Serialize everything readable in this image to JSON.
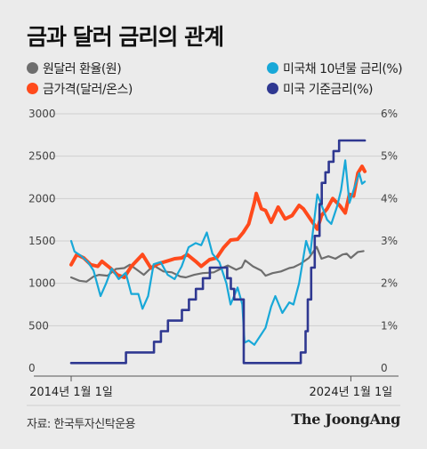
{
  "title": "금과 달러 금리의 관계",
  "legend": [
    {
      "label": "원달러 환율(원)",
      "color": "#6e6e6e"
    },
    {
      "label": "금가격(달러/온스)",
      "color": "#ff4a1c"
    },
    {
      "label": "미국채 10년물 금리(%)",
      "color": "#18a8d8"
    },
    {
      "label": "미국 기준금리(%)",
      "color": "#2f3891"
    }
  ],
  "source": "자료: 한국투자신탁운용",
  "brand": "The JoongAng",
  "chart_data": {
    "type": "line",
    "x_start_label": "2014년 1월 1일",
    "x_end_label": "2024년 1월 1일",
    "x_range": [
      "2014-01-01",
      "2024-06-30"
    ],
    "y_left": {
      "range": [
        0,
        3000
      ],
      "ticks": [
        "3000",
        "2500",
        "2000",
        "1500",
        "1000",
        "500",
        "0"
      ]
    },
    "y_right": {
      "range": [
        0,
        6
      ],
      "ticks": [
        "6%",
        "5%",
        "4%",
        "3%",
        "2%",
        "1%",
        "0"
      ]
    },
    "series": [
      {
        "name": "원달러 환율(원)",
        "axis": "left",
        "color": "#6e6e6e",
        "width": 2.2,
        "points": [
          [
            2014.0,
            1070
          ],
          [
            2014.3,
            1030
          ],
          [
            2014.55,
            1020
          ],
          [
            2014.8,
            1080
          ],
          [
            2015.0,
            1100
          ],
          [
            2015.3,
            1090
          ],
          [
            2015.6,
            1170
          ],
          [
            2015.9,
            1180
          ],
          [
            2016.1,
            1220
          ],
          [
            2016.35,
            1160
          ],
          [
            2016.6,
            1100
          ],
          [
            2016.85,
            1180
          ],
          [
            2017.0,
            1200
          ],
          [
            2017.3,
            1140
          ],
          [
            2017.6,
            1130
          ],
          [
            2017.9,
            1080
          ],
          [
            2018.1,
            1070
          ],
          [
            2018.4,
            1100
          ],
          [
            2018.7,
            1120
          ],
          [
            2018.9,
            1125
          ],
          [
            2019.1,
            1130
          ],
          [
            2019.4,
            1180
          ],
          [
            2019.6,
            1210
          ],
          [
            2019.9,
            1160
          ],
          [
            2020.1,
            1190
          ],
          [
            2020.22,
            1270
          ],
          [
            2020.5,
            1200
          ],
          [
            2020.8,
            1150
          ],
          [
            2020.95,
            1090
          ],
          [
            2021.2,
            1120
          ],
          [
            2021.5,
            1140
          ],
          [
            2021.8,
            1180
          ],
          [
            2021.95,
            1190
          ],
          [
            2022.2,
            1230
          ],
          [
            2022.5,
            1300
          ],
          [
            2022.78,
            1430
          ],
          [
            2022.95,
            1290
          ],
          [
            2023.2,
            1320
          ],
          [
            2023.45,
            1290
          ],
          [
            2023.7,
            1340
          ],
          [
            2023.85,
            1350
          ],
          [
            2024.0,
            1300
          ],
          [
            2024.25,
            1370
          ],
          [
            2024.45,
            1380
          ]
        ]
      },
      {
        "name": "금가격(달러/온스)",
        "axis": "left",
        "color": "#ff4a1c",
        "width": 4,
        "points": [
          [
            2014.0,
            1220
          ],
          [
            2014.2,
            1340
          ],
          [
            2014.45,
            1300
          ],
          [
            2014.7,
            1220
          ],
          [
            2014.95,
            1200
          ],
          [
            2015.1,
            1260
          ],
          [
            2015.4,
            1180
          ],
          [
            2015.65,
            1100
          ],
          [
            2015.9,
            1070
          ],
          [
            2016.15,
            1200
          ],
          [
            2016.55,
            1340
          ],
          [
            2016.85,
            1180
          ],
          [
            2017.1,
            1230
          ],
          [
            2017.4,
            1260
          ],
          [
            2017.7,
            1290
          ],
          [
            2017.95,
            1300
          ],
          [
            2018.15,
            1340
          ],
          [
            2018.45,
            1260
          ],
          [
            2018.65,
            1200
          ],
          [
            2018.95,
            1280
          ],
          [
            2019.2,
            1300
          ],
          [
            2019.45,
            1420
          ],
          [
            2019.7,
            1510
          ],
          [
            2019.95,
            1520
          ],
          [
            2020.15,
            1600
          ],
          [
            2020.35,
            1700
          ],
          [
            2020.55,
            1950
          ],
          [
            2020.62,
            2060
          ],
          [
            2020.8,
            1880
          ],
          [
            2020.95,
            1860
          ],
          [
            2021.15,
            1720
          ],
          [
            2021.4,
            1900
          ],
          [
            2021.65,
            1760
          ],
          [
            2021.9,
            1800
          ],
          [
            2022.15,
            1920
          ],
          [
            2022.3,
            1880
          ],
          [
            2022.55,
            1760
          ],
          [
            2022.8,
            1640
          ],
          [
            2022.95,
            1800
          ],
          [
            2023.15,
            1880
          ],
          [
            2023.35,
            2000
          ],
          [
            2023.6,
            1920
          ],
          [
            2023.8,
            1830
          ],
          [
            2023.95,
            2050
          ],
          [
            2024.1,
            2030
          ],
          [
            2024.25,
            2300
          ],
          [
            2024.4,
            2380
          ],
          [
            2024.5,
            2320
          ]
        ]
      },
      {
        "name": "미국채 10년물 금리(%)",
        "axis": "right",
        "color": "#18a8d8",
        "width": 2.2,
        "points": [
          [
            2014.0,
            3.0
          ],
          [
            2014.12,
            2.75
          ],
          [
            2014.35,
            2.65
          ],
          [
            2014.6,
            2.5
          ],
          [
            2014.8,
            2.3
          ],
          [
            2015.05,
            1.7
          ],
          [
            2015.25,
            2.0
          ],
          [
            2015.45,
            2.35
          ],
          [
            2015.7,
            2.1
          ],
          [
            2015.95,
            2.25
          ],
          [
            2016.15,
            1.75
          ],
          [
            2016.4,
            1.75
          ],
          [
            2016.55,
            1.4
          ],
          [
            2016.75,
            1.7
          ],
          [
            2016.95,
            2.45
          ],
          [
            2017.2,
            2.5
          ],
          [
            2017.45,
            2.2
          ],
          [
            2017.7,
            2.1
          ],
          [
            2017.95,
            2.4
          ],
          [
            2018.2,
            2.85
          ],
          [
            2018.45,
            2.95
          ],
          [
            2018.65,
            2.9
          ],
          [
            2018.85,
            3.2
          ],
          [
            2019.05,
            2.7
          ],
          [
            2019.3,
            2.5
          ],
          [
            2019.55,
            2.0
          ],
          [
            2019.7,
            1.5
          ],
          [
            2019.95,
            1.9
          ],
          [
            2020.12,
            1.5
          ],
          [
            2020.2,
            0.6
          ],
          [
            2020.35,
            0.65
          ],
          [
            2020.55,
            0.55
          ],
          [
            2020.8,
            0.8
          ],
          [
            2020.95,
            0.95
          ],
          [
            2021.15,
            1.45
          ],
          [
            2021.3,
            1.7
          ],
          [
            2021.55,
            1.3
          ],
          [
            2021.8,
            1.55
          ],
          [
            2021.95,
            1.5
          ],
          [
            2022.15,
            2.0
          ],
          [
            2022.4,
            3.0
          ],
          [
            2022.55,
            2.7
          ],
          [
            2022.8,
            4.1
          ],
          [
            2022.95,
            3.85
          ],
          [
            2023.15,
            3.5
          ],
          [
            2023.3,
            3.4
          ],
          [
            2023.5,
            3.8
          ],
          [
            2023.65,
            4.2
          ],
          [
            2023.8,
            4.9
          ],
          [
            2023.95,
            3.9
          ],
          [
            2024.15,
            4.3
          ],
          [
            2024.3,
            4.6
          ],
          [
            2024.4,
            4.35
          ],
          [
            2024.5,
            4.4
          ]
        ]
      },
      {
        "name": "미국 기준금리(%)",
        "axis": "right",
        "color": "#2f3891",
        "width": 2.6,
        "step": true,
        "points": [
          [
            2014.0,
            0.12
          ],
          [
            2015.96,
            0.37
          ],
          [
            2016.96,
            0.62
          ],
          [
            2017.21,
            0.87
          ],
          [
            2017.46,
            1.12
          ],
          [
            2017.96,
            1.37
          ],
          [
            2018.21,
            1.62
          ],
          [
            2018.46,
            1.87
          ],
          [
            2018.71,
            2.12
          ],
          [
            2018.96,
            2.37
          ],
          [
            2019.58,
            2.12
          ],
          [
            2019.71,
            1.87
          ],
          [
            2019.83,
            1.62
          ],
          [
            2020.17,
            0.12
          ],
          [
            2022.21,
            0.37
          ],
          [
            2022.38,
            0.87
          ],
          [
            2022.46,
            1.62
          ],
          [
            2022.58,
            2.37
          ],
          [
            2022.71,
            3.12
          ],
          [
            2022.88,
            3.87
          ],
          [
            2022.96,
            4.37
          ],
          [
            2023.09,
            4.62
          ],
          [
            2023.21,
            4.87
          ],
          [
            2023.38,
            5.12
          ],
          [
            2023.58,
            5.37
          ],
          [
            2024.5,
            5.37
          ]
        ]
      }
    ]
  }
}
